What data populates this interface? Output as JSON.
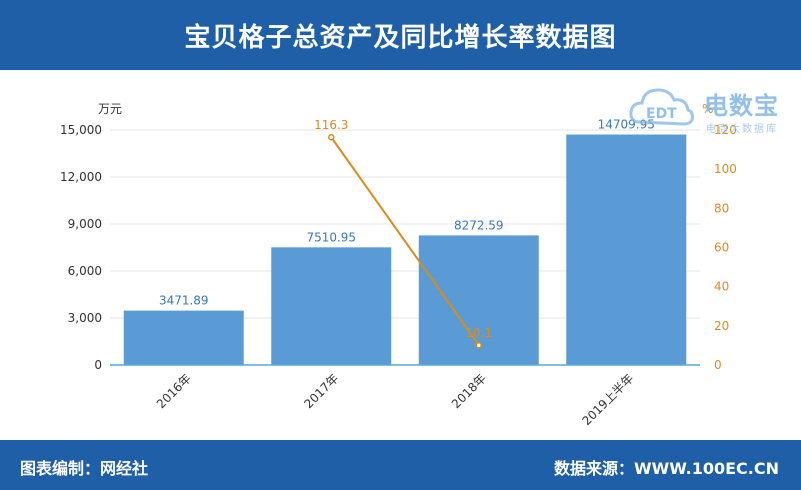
{
  "title": "宝贝格子总资产及同比增长率数据图",
  "footer": {
    "left": "图表编制：网经社",
    "right": "数据来源：WWW.100EC.CN"
  },
  "watermark": {
    "logo_text": "电数宝",
    "badge_text": "EDT",
    "sub_text": "电商大数据库"
  },
  "colors": {
    "header_bg": "#1f5fa8",
    "bar": "#5b9bd5",
    "line": "#d98c1a",
    "bar_label": "#3a78bf",
    "line_label": "#e08a1e"
  },
  "chart_data": {
    "type": "bar",
    "categories": [
      "2016年",
      "2017年",
      "2018年",
      "2019上半年"
    ],
    "series": [
      {
        "name": "",
        "type": "bar",
        "axis": "left",
        "values": [
          3471.89,
          7510.95,
          8272.59,
          14709.95
        ],
        "labels": [
          "3471.89",
          "7510.95",
          "8272.59",
          "14709.95"
        ]
      },
      {
        "name": "",
        "type": "line",
        "axis": "right",
        "values": [
          null,
          116.3,
          10.1,
          null
        ],
        "labels": [
          "",
          "116.3",
          "10.1",
          ""
        ]
      }
    ],
    "ylabel": "万元",
    "ylabel_right": "%",
    "ylim": [
      0,
      15000
    ],
    "ylim_right": [
      0,
      120
    ],
    "yticks": [
      "0",
      "3,000",
      "6,000",
      "9,000",
      "12,000",
      "15,000"
    ],
    "yticks_right": [
      "0",
      "20",
      "40",
      "60",
      "80",
      "100",
      "120"
    ],
    "grid": true,
    "legend": "none"
  }
}
